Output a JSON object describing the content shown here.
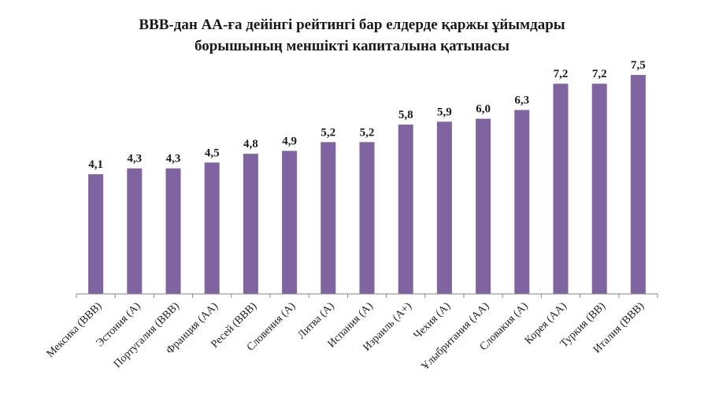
{
  "chart_data": {
    "type": "bar",
    "title_line1": "BBB-дан АА-ға дейінгі  рейтингі бар елдерде қаржы ұйымдары",
    "title_line2": "борышының меншікті капиталына қатынасы",
    "categories": [
      "Мексика (ВВВ)",
      "Эстония (А)",
      "Португалия (ВВВ)",
      "Франция (АА)",
      "Ресей (ВВВ)",
      "Словения (А)",
      "Литва (А)",
      "Испания (А)",
      "Израиль (А+)",
      "Чехия (А)",
      "Ұлыбритания (АА)",
      "Словакия (А)",
      "Корея (АА)",
      "Туркия (ВВ)",
      "Италия (ВВВ)"
    ],
    "values": [
      4.1,
      4.3,
      4.3,
      4.5,
      4.8,
      4.9,
      5.2,
      5.2,
      5.8,
      5.9,
      6.0,
      6.3,
      7.2,
      7.2,
      7.5
    ],
    "value_labels": [
      "4,1",
      "4,3",
      "4,3",
      "4,5",
      "4,8",
      "4,9",
      "5,2",
      "5,2",
      "5,8",
      "5,9",
      "6,0",
      "6,3",
      "7,2",
      "7,2",
      "7,5"
    ],
    "ylim": [
      0,
      7.8
    ],
    "xlabel": "",
    "ylabel": "",
    "grid": false,
    "legend": "none",
    "bar_color": "#8064A2",
    "axis_color": "#868686"
  }
}
